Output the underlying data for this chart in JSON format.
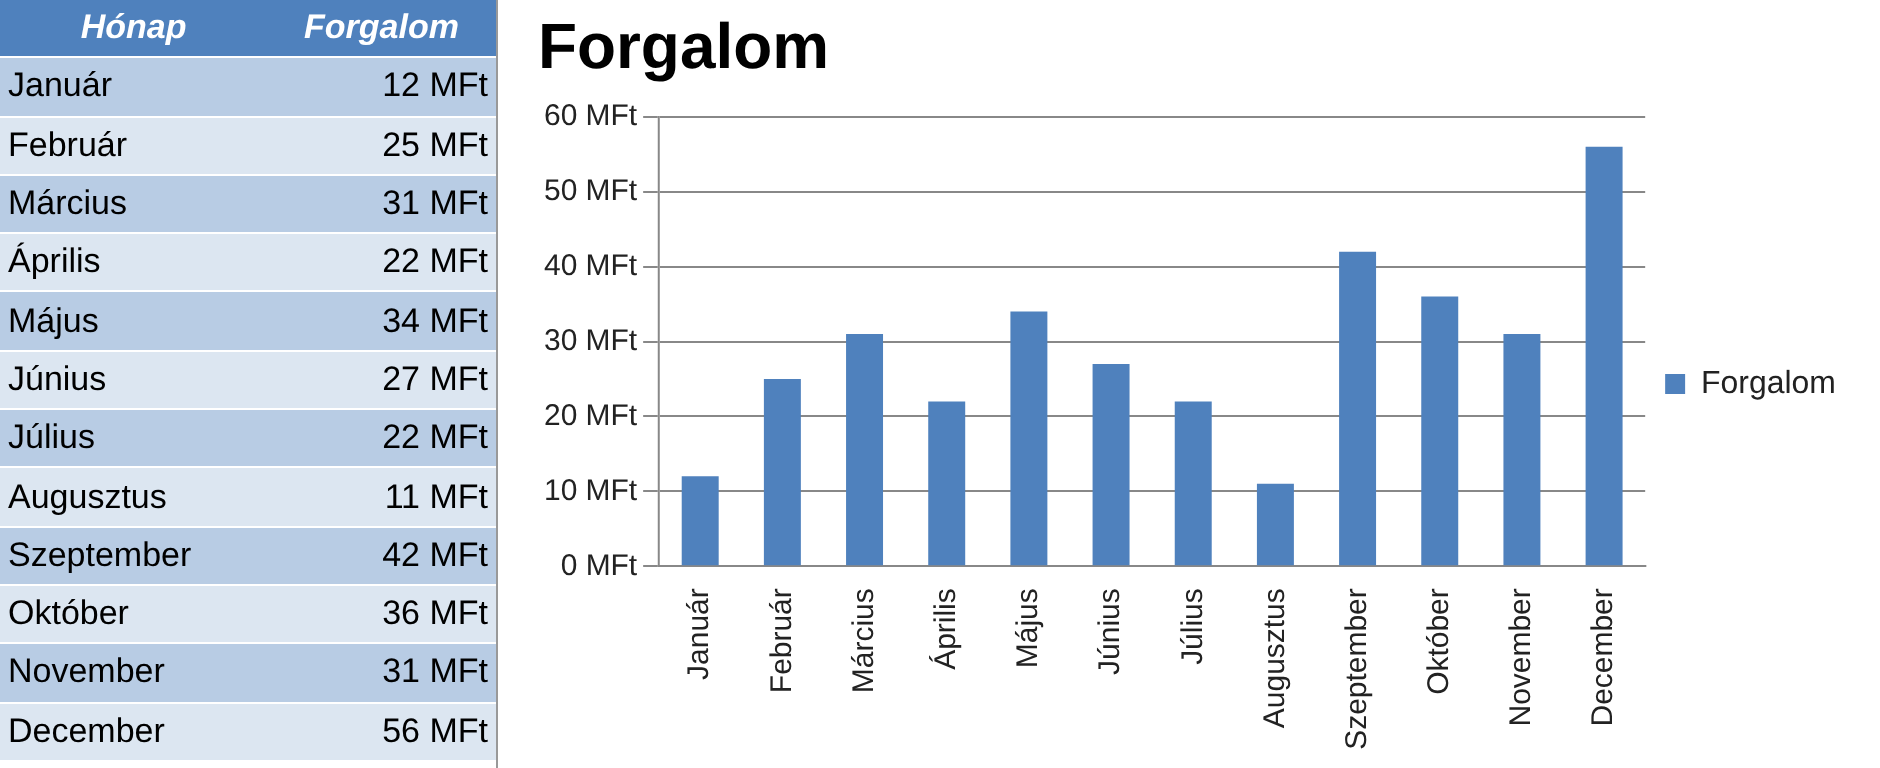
{
  "chart_data": {
    "type": "bar",
    "title": "Forgalom",
    "annotations": [
      "Hónap",
      "12 MFt",
      "25 MFt",
      "31 MFt",
      "22 MFt",
      "34 MFt",
      "27 MFt",
      "22 MFt",
      "11 MFt",
      "42 MFt",
      "36 MFt",
      "31 MFt",
      "56 MFt"
    ],
    "categories": [
      "Január",
      "Február",
      "Március",
      "Április",
      "Május",
      "Június",
      "Július",
      "Augusztus",
      "Szeptember",
      "Október",
      "November",
      "December"
    ],
    "series": [
      {
        "name": "Forgalom",
        "color": "#4f81bd",
        "values": [
          12,
          25,
          31,
          22,
          34,
          27,
          22,
          11,
          42,
          36,
          31,
          56
        ]
      }
    ],
    "ylim": [
      0,
      60
    ],
    "yticks": [
      {
        "value": 0,
        "label": "0 MFt"
      },
      {
        "value": 10,
        "label": "10 MFt"
      },
      {
        "value": 20,
        "label": "20 MFt"
      },
      {
        "value": 30,
        "label": "30 MFt"
      },
      {
        "value": 40,
        "label": "40 MFt"
      },
      {
        "value": 50,
        "label": "50 MFt"
      },
      {
        "value": 60,
        "label": "60 MFt"
      }
    ],
    "grid": "y",
    "legend": "right"
  }
}
